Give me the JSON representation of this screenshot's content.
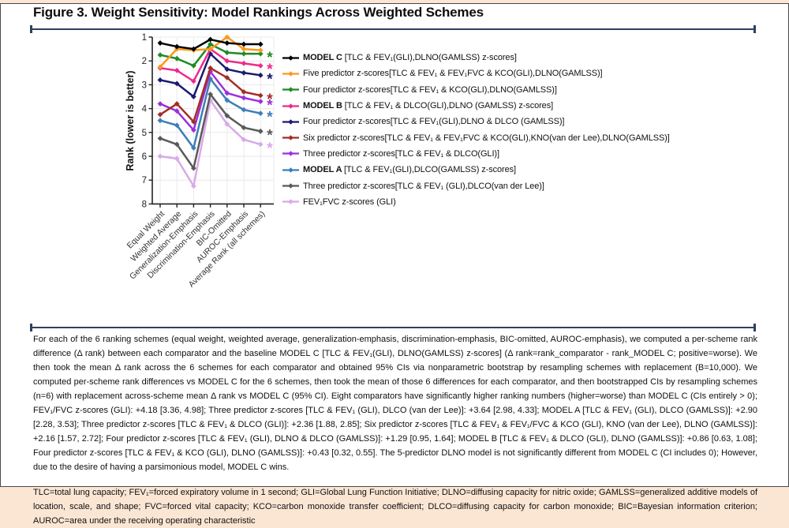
{
  "figure": {
    "title": "Figure 3. Weight Sensitivity: Model Rankings Across Weighted Schemes"
  },
  "chart_data": {
    "type": "line",
    "ylabel": "Rank (lower is better)",
    "ylim": [
      1,
      8
    ],
    "y_inverted_note": "rank 1 at top",
    "yticks": [
      1,
      2,
      3,
      4,
      5,
      6,
      7,
      8
    ],
    "grid": true,
    "legend_position": "right",
    "marker": "diamond",
    "significance_marker": "*",
    "categories": [
      "Equal Weight",
      "Weighted Average",
      "Generalization-Emphasis",
      "Discrimination-Emphasis",
      "BIC-Omitted",
      "AUROC-Emphasis",
      "Average Rank (all schemes)"
    ],
    "series": [
      {
        "name_bold": "MODEL C ",
        "name_rest": "[TLC & FEV₁(GLI),DLNO(GAMLSS) z-scores]",
        "color": "#000000",
        "significant": false,
        "values": [
          1.25,
          1.4,
          1.5,
          1.1,
          1.25,
          1.3,
          1.3
        ]
      },
      {
        "name_bold": "",
        "name_rest": "Five predictor z-scores[TLC & FEV₁ & FEV₁FVC & KCO(GLI),DLNO(GAMLSS)]",
        "color": "#F89B1C",
        "significant": false,
        "values": [
          2.25,
          1.5,
          1.55,
          1.5,
          1.0,
          1.5,
          1.55
        ]
      },
      {
        "name_bold": "",
        "name_rest": "Four predictor z-scores[TLC & FEV₁ & KCO(GLI),DLNO(GAMLSS)]",
        "color": "#1F8B24",
        "significant": true,
        "values": [
          1.75,
          1.9,
          2.2,
          1.3,
          1.65,
          1.7,
          1.7
        ]
      },
      {
        "name_bold": "MODEL B ",
        "name_rest": "[TLC & FEV₁ & DLCO(GLI),DLNO (GAMLSS) z-scores]",
        "color": "#EE2A8C",
        "significant": true,
        "values": [
          2.3,
          2.4,
          2.85,
          1.5,
          2.0,
          2.1,
          2.2
        ]
      },
      {
        "name_bold": "",
        "name_rest": "Four predictor z-scores[TLC & FEV₁(GLI),DLNO & DLCO (GAMLSS)]",
        "color": "#1A1A6E",
        "significant": true,
        "values": [
          2.8,
          2.95,
          3.5,
          1.7,
          2.35,
          2.5,
          2.6
        ]
      },
      {
        "name_bold": "",
        "name_rest": "Six predictor z-scores[TLC & FEV₁ & FEV₁FVC & KCO(GLI),KNO(van der Lee),DLNO(GAMLSS)]",
        "color": "#A32E24",
        "significant": true,
        "values": [
          4.25,
          3.8,
          4.55,
          2.3,
          2.7,
          3.3,
          3.45
        ]
      },
      {
        "name_bold": "",
        "name_rest": "Three predictor z-scores[TLC & FEV₁ & DLCO(GLI)]",
        "color": "#9B30DC",
        "significant": true,
        "values": [
          3.8,
          4.1,
          4.9,
          2.45,
          3.35,
          3.55,
          3.7
        ]
      },
      {
        "name_bold": "MODEL A ",
        "name_rest": "[TLC & FEV₁(GLI),DLCO(GAMLSS) z-scores]",
        "color": "#3D7EB8",
        "significant": true,
        "values": [
          4.5,
          4.7,
          5.65,
          2.75,
          3.65,
          4.05,
          4.2
        ]
      },
      {
        "name_bold": "",
        "name_rest": "Three predictor z-scores[TLC & FEV₁ (GLI),DLCO(van der Lee)]",
        "color": "#595959",
        "significant": true,
        "values": [
          5.25,
          5.5,
          6.5,
          3.4,
          4.3,
          4.8,
          4.95
        ]
      },
      {
        "name_bold": "",
        "name_rest": "FEV₁FVC z-scores (GLI)",
        "color": "#D8A9E8",
        "significant": true,
        "values": [
          6.0,
          6.1,
          7.25,
          3.65,
          4.65,
          5.3,
          5.5
        ]
      }
    ]
  },
  "caption": {
    "methods": "For each of the 6 ranking schemes (equal weight, weighted average, generalization-emphasis, discrimination-emphasis, BIC-omitted, AUROC-emphasis), we computed a per-scheme rank difference (Δ rank) between each comparator and the baseline MODEL C [TLC & FEV₁(GLI), DLNO(GAMLSS) z-scores] (Δ rank=rank_comparator - rank_MODEL C; positive=worse). We then took the mean Δ rank across the 6 schemes for each comparator and obtained 95% CIs via nonparametric bootstrap by resampling schemes with replacement (B=10,000). We computed per-scheme rank differences vs MODEL C for the 6 schemes, then took the mean of those 6 differences for each comparator, and then bootstrapped CIs by resampling schemes (n=6) with replacement across-scheme mean Δ rank vs MODEL C (95% CI). Eight comparators have significantly higher ranking numbers (higher=worse) than MODEL C (CIs entirely > 0); FEV₁/FVC z-scores (GLI): +4.18 [3.36, 4.98]; Three predictor z-scores [TLC & FEV₁ (GLI), DLCO (van der Lee)]: +3.64 [2.98, 4.33]; MODEL A [TLC & FEV₁ (GLI), DLCO (GAMLSS)]: +2.90 [2.28, 3.53]; Three predictor z-scores [TLC & FEV₁ & DLCO (GLI)]: +2.36 [1.88, 2.85]; Six predictor z-scores [TLC & FEV₁ & FEV₁/FVC & KCO (GLI), KNO (van der Lee), DLNO (GAMLSS)]: +2.16 [1.57, 2.72]; Four predictor z-scores [TLC & FEV₁ (GLI), DLNO & DLCO (GAMLSS)]: +1.29 [0.95, 1.64]; MODEL B [TLC & FEV₁ & DLCO (GLI), DLNO (GAMLSS)]: +0.86 [0.63, 1.08]; Four predictor z-scores [TLC & FEV₁ & KCO (GLI), DLNO (GAMLSS)]: +0.43 [0.32, 0.55]. The 5-predictor DLNO model is not significantly different from MODEL C (CI includes 0); However, due to the desire of having a parsimonious model, MODEL C wins.",
    "abbreviations": "TLC=total lung capacity; FEV₁=forced expiratory volume in 1 second; GLI=Global Lung Function Initiative; DLNO=diffusing capacity for nitric oxide; GAMLSS=generalized additive models of location, scale, and shape; FVC=forced vital capacity; KCO=carbon monoxide transfer coefficient; DLCO=diffusing capacity for carbon monoxide; BIC=Bayesian information criterion; AUROC=area under the receiving operating characteristic"
  },
  "colors": {
    "page_background": "#fbe6d4",
    "panel_background": "#ffffff",
    "divider": "#2e4060",
    "gridline": "#e9e9e9",
    "axis": "#222222"
  }
}
